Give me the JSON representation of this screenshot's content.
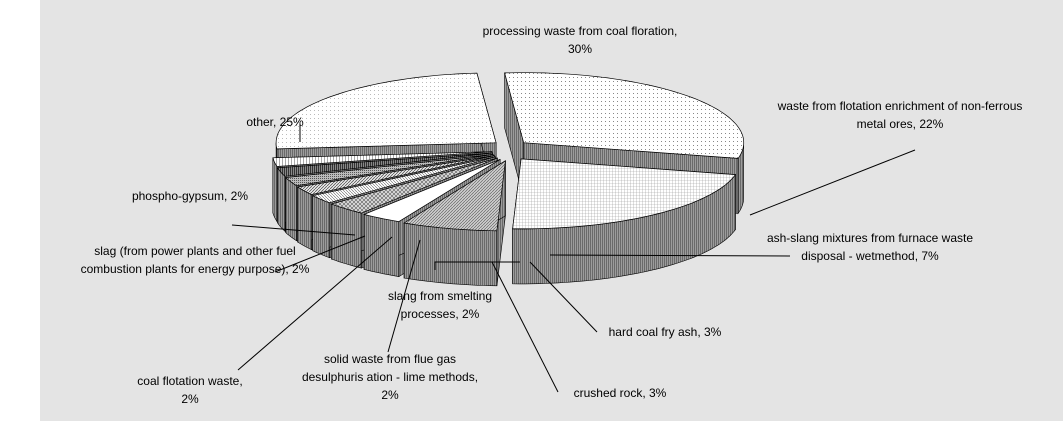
{
  "chart_data": {
    "type": "pie",
    "values": [
      30,
      22,
      7,
      3,
      3,
      2,
      2,
      2,
      2,
      2,
      25
    ],
    "value_labels": [
      "processing waste from coal floration, 30%",
      "waste from flotation enrichment of non-ferrous metal ores, 22%",
      "ash-slang mixtures from furnace waste disposal - wetmethod, 7%",
      "hard coal fry ash, 3%",
      "crushed rock, 3%",
      "slang from smelting processes, 2%",
      "solid waste from flue gas desulphuris ation - lime methods, 2%",
      "coal flotation waste, 2%",
      "slag (from power plants and other fuel combustion plants for energy purpose), 2%",
      "phospho-gypsum, 2%",
      "other, 25%"
    ],
    "colors": [
      "#ffffff",
      "#ffffff",
      "#bdbdbd",
      "#ffffff",
      "#dcdcdc",
      "#ffffff",
      "#e0e0e0",
      "#cfcfcf",
      "#9a9a9a",
      "#ffffff",
      "#ffffff"
    ]
  }
}
